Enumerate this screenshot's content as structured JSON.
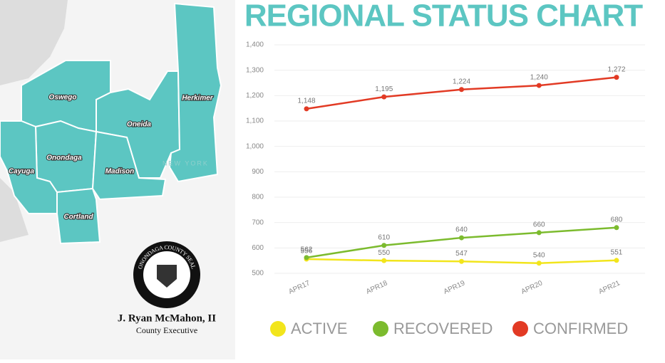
{
  "chart_data": {
    "type": "line",
    "title": "REGIONAL STATUS CHART",
    "categories": [
      "APR17",
      "APR18",
      "APR19",
      "APR20",
      "APR21"
    ],
    "series": [
      {
        "name": "ACTIVE",
        "color": "#f2e51c",
        "values": [
          556,
          550,
          547,
          540,
          551
        ]
      },
      {
        "name": "RECOVERED",
        "color": "#7cbb2e",
        "values": [
          562,
          610,
          640,
          660,
          680
        ]
      },
      {
        "name": "CONFIRMED",
        "color": "#e23a24",
        "values": [
          1148,
          1195,
          1224,
          1240,
          1272
        ],
        "value_labels": [
          "1,148",
          "1,195",
          "1,224",
          "1,240",
          "1,272"
        ]
      }
    ],
    "ylim": [
      500,
      1400
    ],
    "yticks": [
      500,
      600,
      700,
      800,
      900,
      {
        "value": 1000,
        "label": "1,000"
      },
      {
        "value": 1100,
        "label": "1,100"
      },
      {
        "value": 1200,
        "label": "1,200"
      },
      {
        "value": 1300,
        "label": "1,300"
      },
      {
        "value": 1400,
        "label": "1,400"
      }
    ],
    "grid": true,
    "legend": "bottom"
  },
  "map": {
    "counties": [
      "Oswego",
      "Oneida",
      "Herkimer",
      "Onondaga",
      "Cayuga",
      "Madison",
      "Cortland"
    ],
    "state_label": "NEW YORK"
  },
  "executive": {
    "seal_text": "ONONDAGA COUNTY SEAL",
    "name": "J. Ryan McMahon, II",
    "title": "County Executive"
  }
}
